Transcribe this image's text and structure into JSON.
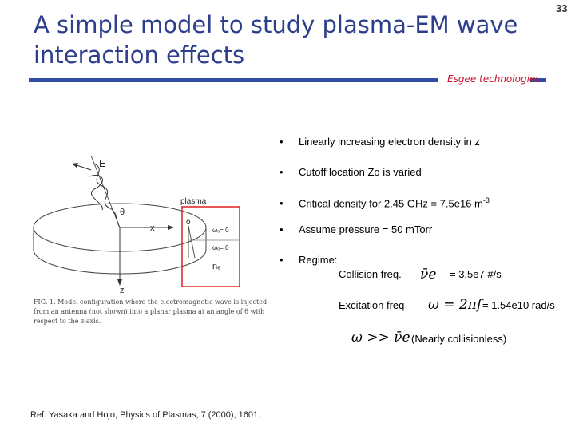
{
  "slide": {
    "title_line1": "A simple model to study plasma-EM wave",
    "title_line2": "interaction effects",
    "number": "33",
    "brand": "Esgee technologies"
  },
  "figure": {
    "label_E": "E",
    "label_theta": "θ",
    "label_plasma": "plasma",
    "label_x": "x",
    "label_o": "o",
    "label_wo": "ωₒ= 0",
    "label_wo2": "ωₒ= 0",
    "label_ne": "nₑ",
    "label_z": "z",
    "caption": "FIG. 1. Model configuration where the electromagnetic wave is injected from an antenna (not shown) into a planar plasma at an angle of θ with respect to the z-axis."
  },
  "bullets": [
    "Linearly increasing electron density in z",
    "Cutoff location Zo is varied",
    "Critical density for 2.45 GHz = 7.5e16 m",
    "Assume pressure = 50 mTorr",
    "Regime:"
  ],
  "bullet_sup": "-3",
  "regime": {
    "collision_label": "Collision freq.",
    "collision_value": "=  3.5e7  #/s",
    "excitation_label": "Excitation freq",
    "excitation_value": "= 1.54e10 rad/s",
    "nearly": "(Nearly collisionless)",
    "nu_e": "ν̄e",
    "omega_eq": "ω = 2πf",
    "omega_gg": "ω >> ν̄e"
  },
  "reference": "Ref: Yasaka and Hojo, Physics of Plasmas, 7 (2000), 1601."
}
